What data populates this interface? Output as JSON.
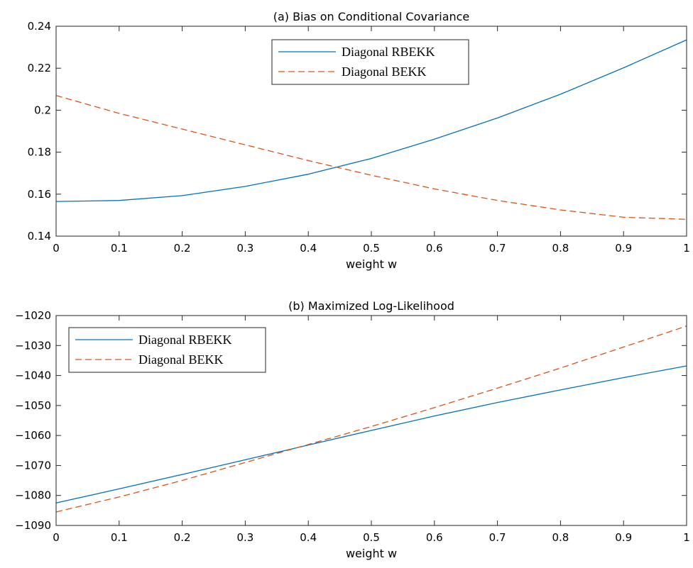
{
  "chart_data": [
    {
      "type": "line",
      "title": "(a) Bias on Conditional Covariance",
      "xlabel": "weight w",
      "ylabel": "",
      "xlim": [
        0,
        1
      ],
      "ylim": [
        0.14,
        0.24
      ],
      "xticks": [
        0,
        0.1,
        0.2,
        0.3,
        0.4,
        0.5,
        0.6,
        0.7,
        0.8,
        0.9,
        1
      ],
      "xtick_labels": [
        "0",
        "0.1",
        "0.2",
        "0.3",
        "0.4",
        "0.5",
        "0.6",
        "0.7",
        "0.8",
        "0.9",
        "1"
      ],
      "yticks": [
        0.14,
        0.16,
        0.18,
        0.2,
        0.22,
        0.24
      ],
      "ytick_labels": [
        "0.14",
        "0.16",
        "0.18",
        "0.2",
        "0.22",
        "0.24"
      ],
      "grid": false,
      "legend_position": "top-center",
      "x": [
        0,
        0.1,
        0.2,
        0.3,
        0.4,
        0.5,
        0.6,
        0.7,
        0.8,
        0.9,
        1
      ],
      "series": [
        {
          "name": "Diagonal RBEKK",
          "style": "solid",
          "color": "#0072BD",
          "values": [
            0.1565,
            0.157,
            0.1593,
            0.1637,
            0.1695,
            0.177,
            0.1862,
            0.1963,
            0.2076,
            0.2202,
            0.2335
          ]
        },
        {
          "name": "Diagonal BEKK",
          "style": "dashed",
          "color": "#D95319",
          "values": [
            0.207,
            0.1985,
            0.191,
            0.1835,
            0.176,
            0.169,
            0.1625,
            0.157,
            0.1525,
            0.149,
            0.148
          ]
        }
      ]
    },
    {
      "type": "line",
      "title": "(b) Maximized Log-Likelihood",
      "xlabel": "weight w",
      "ylabel": "",
      "xlim": [
        0,
        1
      ],
      "ylim": [
        -1090,
        -1020
      ],
      "xticks": [
        0,
        0.1,
        0.2,
        0.3,
        0.4,
        0.5,
        0.6,
        0.7,
        0.8,
        0.9,
        1
      ],
      "xtick_labels": [
        "0",
        "0.1",
        "0.2",
        "0.3",
        "0.4",
        "0.5",
        "0.6",
        "0.7",
        "0.8",
        "0.9",
        "1"
      ],
      "yticks": [
        -1090,
        -1080,
        -1070,
        -1060,
        -1050,
        -1040,
        -1030,
        -1020
      ],
      "ytick_labels": [
        "−1090",
        "−1080",
        "−1070",
        "−1060",
        "−1050",
        "−1040",
        "−1030",
        "−1020"
      ],
      "grid": false,
      "legend_position": "top-left",
      "x": [
        0,
        0.1,
        0.2,
        0.3,
        0.4,
        0.5,
        0.6,
        0.7,
        0.8,
        0.9,
        1
      ],
      "series": [
        {
          "name": "Diagonal RBEKK",
          "style": "solid",
          "color": "#0072BD",
          "values": [
            -1082.5,
            -1077.8,
            -1073.0,
            -1068.1,
            -1063.2,
            -1058.3,
            -1053.5,
            -1049.0,
            -1044.8,
            -1040.7,
            -1036.8
          ]
        },
        {
          "name": "Diagonal BEKK",
          "style": "dashed",
          "color": "#D95319",
          "values": [
            -1085.5,
            -1080.5,
            -1075.0,
            -1069.0,
            -1063.0,
            -1057.0,
            -1050.7,
            -1044.2,
            -1037.5,
            -1030.5,
            -1023.5
          ]
        }
      ]
    }
  ]
}
